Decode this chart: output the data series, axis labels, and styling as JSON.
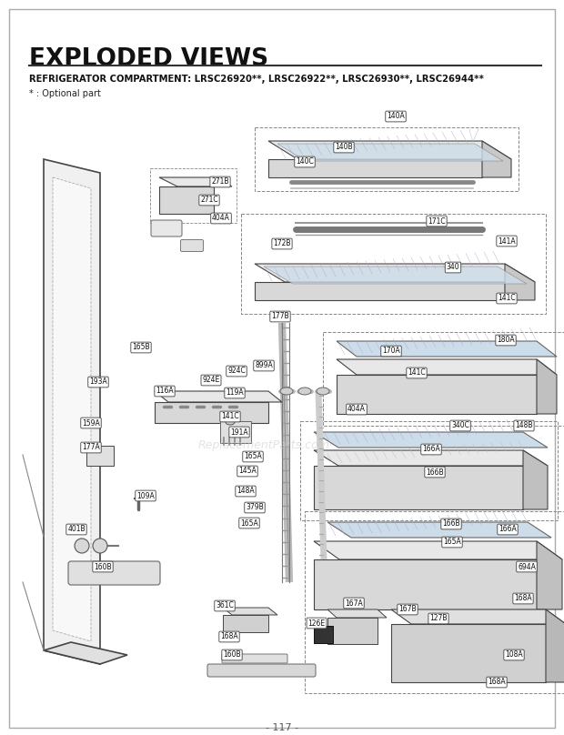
{
  "title": "EXPLODED VIEWS",
  "subtitle": "REFRIGERATOR COMPARTMENT: LRSC26920**, LRSC26922**, LRSC26930**, LRSC26944**",
  "optional_note": "* : Optional part",
  "page_number": "- 117 -",
  "bg_color": "#ffffff",
  "title_color": "#1a1a1a",
  "watermark": "ReplacementParts.com",
  "line_color": "#444444",
  "fill_light": "#e8e8e8",
  "fill_mid": "#d0d0d0",
  "fill_dark": "#b8b8b8",
  "fill_glass": "#d0dce4",
  "fill_hatch": "#cccccc"
}
